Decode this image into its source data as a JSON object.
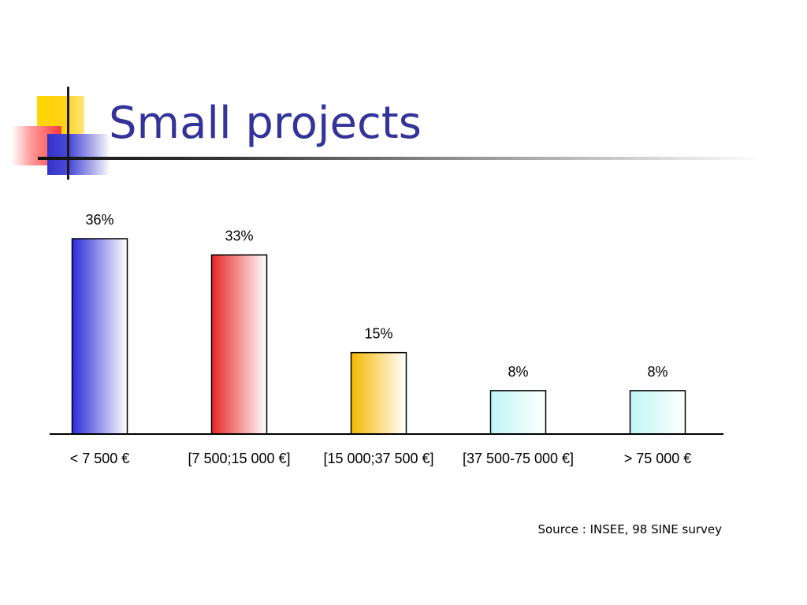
{
  "slide": {
    "title": "Small projects",
    "source": "Source : INSEE, 98 SINE survey"
  },
  "colors": {
    "title": "#333399",
    "series": [
      "#2b2bd9",
      "#e62424",
      "#f5b800",
      "#bff5f5",
      "#bff5f5"
    ]
  },
  "chart_data": {
    "type": "bar",
    "title": "",
    "xlabel": "",
    "ylabel": "",
    "categories": [
      "< 7 500 €",
      "[7 500;15 000 €]",
      "[15 000;37 500 €]",
      "[37 500-75 000 €]",
      "> 75 000 €"
    ],
    "values": [
      36,
      33,
      15,
      8,
      8
    ],
    "data_labels": [
      "36%",
      "33%",
      "15%",
      "8%",
      "8%"
    ],
    "ylim": [
      0,
      36
    ],
    "grid": false,
    "legend": "none"
  }
}
